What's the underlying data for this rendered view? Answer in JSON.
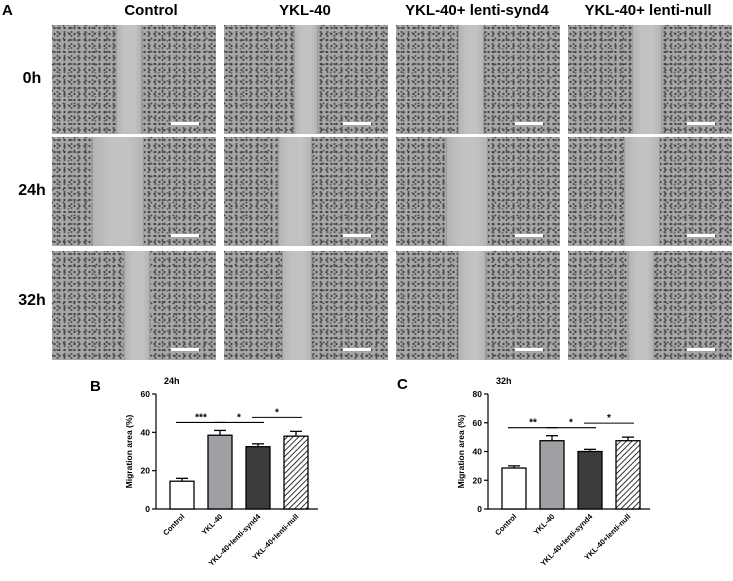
{
  "panel_labels": {
    "a": "A",
    "b": "B",
    "c": "C"
  },
  "columns": [
    "Control",
    "YKL-40",
    "YKL-40+ lenti-synd4",
    "YKL-40+ lenti-null"
  ],
  "rows": [
    "0h",
    "24h",
    "32h"
  ],
  "colors": {
    "control_fill": "#ffffff",
    "ykl40_fill": "#a0a0a4",
    "synd4_fill": "#3c3c3c",
    "null_fill": "hatched"
  },
  "chart_data": [
    {
      "type": "bar",
      "title": "24h",
      "categories": [
        "Control",
        "YKL-40",
        "YKL-40+lenti-synd4",
        "YKL-40+lenti-null"
      ],
      "values": [
        14.5,
        38.5,
        32.5,
        38.0
      ],
      "errors": [
        1.5,
        2.5,
        1.5,
        2.5
      ],
      "xlabel": "",
      "ylabel": "Migration area (%)",
      "ylim": [
        0,
        60
      ],
      "yticks": [
        "0",
        "20",
        "40",
        "60"
      ],
      "significance": [
        {
          "from": 0,
          "to": 1,
          "label": "***"
        },
        {
          "from": 1,
          "to": 2,
          "label": "*"
        },
        {
          "from": 2,
          "to": 3,
          "label": "*"
        }
      ]
    },
    {
      "type": "bar",
      "title": "32h",
      "categories": [
        "Control",
        "YKL-40",
        "YKL-40+lenti-synd4",
        "YKL-40+lenti-null"
      ],
      "values": [
        28.5,
        47.5,
        40.0,
        47.5
      ],
      "errors": [
        1.5,
        3.5,
        1.5,
        2.5
      ],
      "xlabel": "",
      "ylabel": "Migration area (%)",
      "ylim": [
        0,
        80
      ],
      "yticks": [
        "0",
        "20",
        "40",
        "60",
        "80"
      ],
      "significance": [
        {
          "from": 0,
          "to": 1,
          "label": "**"
        },
        {
          "from": 1,
          "to": 2,
          "label": "*"
        },
        {
          "from": 2,
          "to": 3,
          "label": "*"
        }
      ]
    }
  ]
}
